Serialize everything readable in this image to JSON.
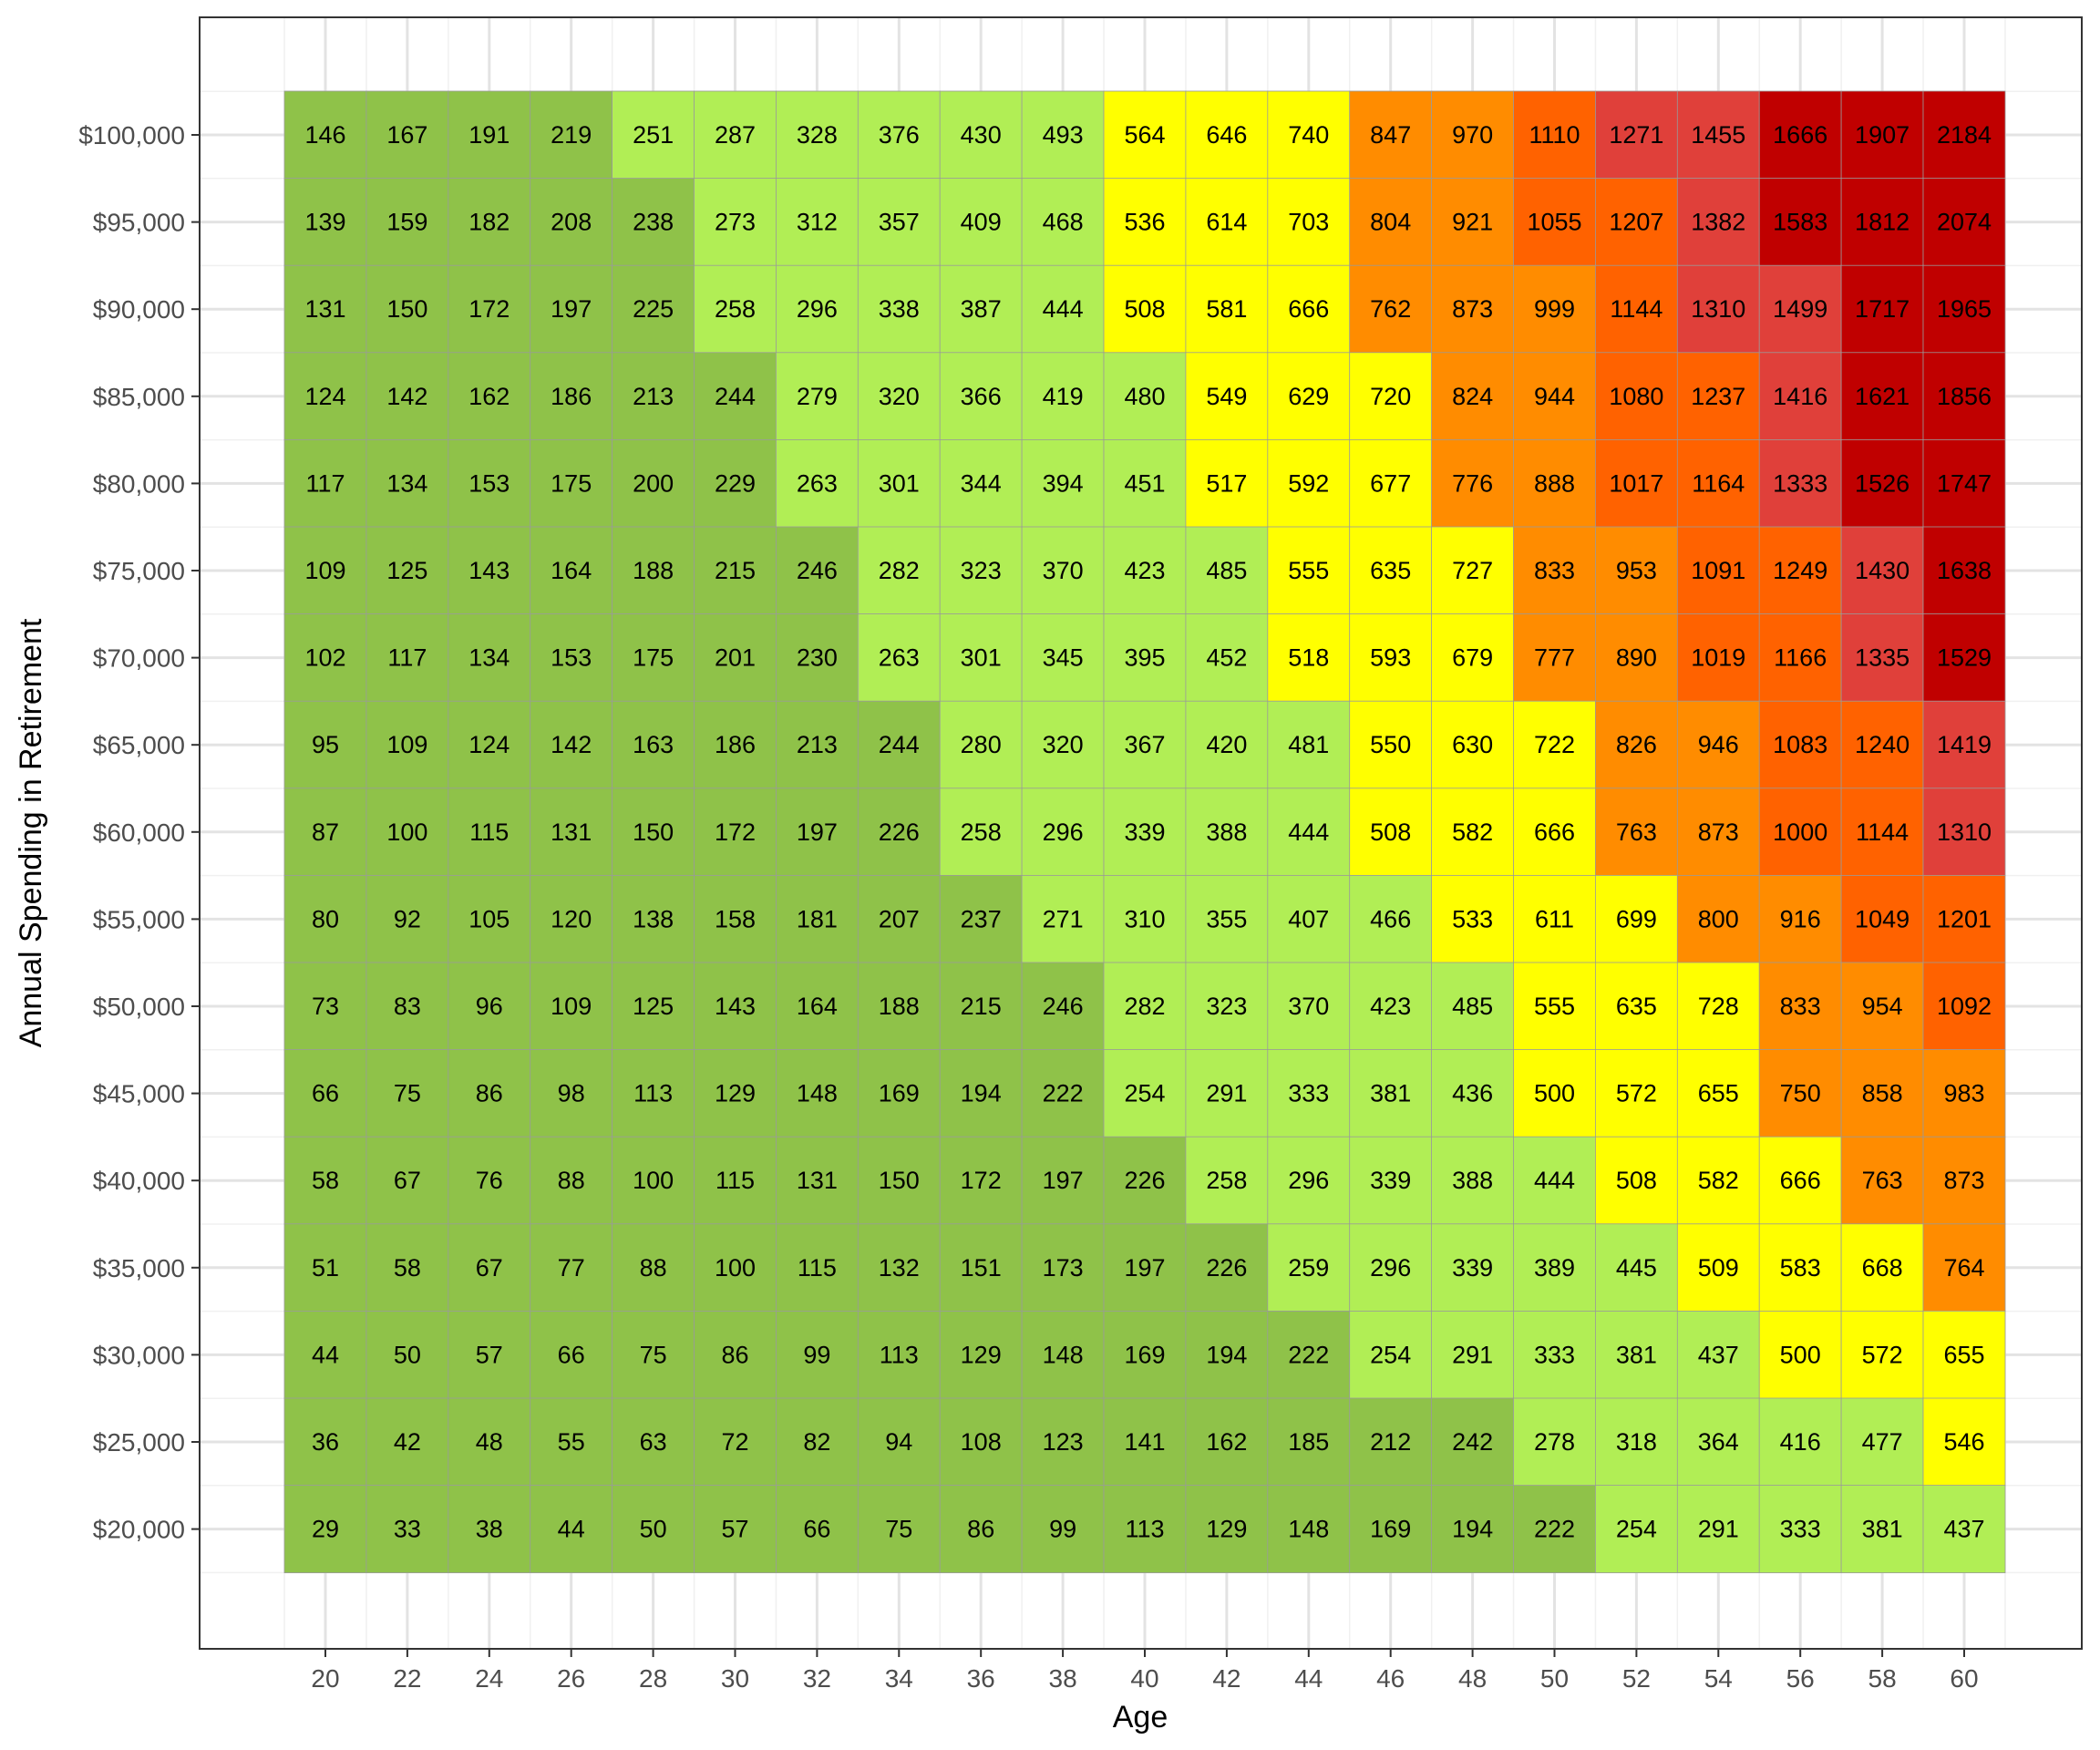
{
  "chart_data": {
    "type": "heatmap",
    "xlabel": "Age",
    "ylabel": "Annual Spending in Retirement",
    "x": [
      20,
      22,
      24,
      26,
      28,
      30,
      32,
      34,
      36,
      38,
      40,
      42,
      44,
      46,
      48,
      50,
      52,
      54,
      56,
      58,
      60
    ],
    "x_tick_labels": [
      "20",
      "22",
      "24",
      "26",
      "28",
      "30",
      "32",
      "34",
      "36",
      "38",
      "40",
      "42",
      "44",
      "46",
      "48",
      "50",
      "52",
      "54",
      "56",
      "58",
      "60"
    ],
    "y": [
      100000,
      95000,
      90000,
      85000,
      80000,
      75000,
      70000,
      65000,
      60000,
      55000,
      50000,
      45000,
      40000,
      35000,
      30000,
      25000,
      20000
    ],
    "y_tick_labels": [
      "$100,000",
      "$95,000",
      "$90,000",
      "$85,000",
      "$80,000",
      "$75,000",
      "$70,000",
      "$65,000",
      "$60,000",
      "$55,000",
      "$50,000",
      "$45,000",
      "$40,000",
      "$35,000",
      "$30,000",
      "$25,000",
      "$20,000"
    ],
    "values": [
      [
        146,
        167,
        191,
        219,
        251,
        287,
        328,
        376,
        430,
        493,
        564,
        646,
        740,
        847,
        970,
        1110,
        1271,
        1455,
        1666,
        1907,
        2184
      ],
      [
        139,
        159,
        182,
        208,
        238,
        273,
        312,
        357,
        409,
        468,
        536,
        614,
        703,
        804,
        921,
        1055,
        1207,
        1382,
        1583,
        1812,
        2074
      ],
      [
        131,
        150,
        172,
        197,
        225,
        258,
        296,
        338,
        387,
        444,
        508,
        581,
        666,
        762,
        873,
        999,
        1144,
        1310,
        1499,
        1717,
        1965
      ],
      [
        124,
        142,
        162,
        186,
        213,
        244,
        279,
        320,
        366,
        419,
        480,
        549,
        629,
        720,
        824,
        944,
        1080,
        1237,
        1416,
        1621,
        1856
      ],
      [
        117,
        134,
        153,
        175,
        200,
        229,
        263,
        301,
        344,
        394,
        451,
        517,
        592,
        677,
        776,
        888,
        1017,
        1164,
        1333,
        1526,
        1747
      ],
      [
        109,
        125,
        143,
        164,
        188,
        215,
        246,
        282,
        323,
        370,
        423,
        485,
        555,
        635,
        727,
        833,
        953,
        1091,
        1249,
        1430,
        1638
      ],
      [
        102,
        117,
        134,
        153,
        175,
        201,
        230,
        263,
        301,
        345,
        395,
        452,
        518,
        593,
        679,
        777,
        890,
        1019,
        1166,
        1335,
        1529
      ],
      [
        95,
        109,
        124,
        142,
        163,
        186,
        213,
        244,
        280,
        320,
        367,
        420,
        481,
        550,
        630,
        722,
        826,
        946,
        1083,
        1240,
        1419
      ],
      [
        87,
        100,
        115,
        131,
        150,
        172,
        197,
        226,
        258,
        296,
        339,
        388,
        444,
        508,
        582,
        666,
        763,
        873,
        1000,
        1144,
        1310
      ],
      [
        80,
        92,
        105,
        120,
        138,
        158,
        181,
        207,
        237,
        271,
        310,
        355,
        407,
        466,
        533,
        611,
        699,
        800,
        916,
        1049,
        1201
      ],
      [
        73,
        83,
        96,
        109,
        125,
        143,
        164,
        188,
        215,
        246,
        282,
        323,
        370,
        423,
        485,
        555,
        635,
        728,
        833,
        954,
        1092
      ],
      [
        66,
        75,
        86,
        98,
        113,
        129,
        148,
        169,
        194,
        222,
        254,
        291,
        333,
        381,
        436,
        500,
        572,
        655,
        750,
        858,
        983
      ],
      [
        58,
        67,
        76,
        88,
        100,
        115,
        131,
        150,
        172,
        197,
        226,
        258,
        296,
        339,
        388,
        444,
        508,
        582,
        666,
        763,
        873
      ],
      [
        51,
        58,
        67,
        77,
        88,
        100,
        115,
        132,
        151,
        173,
        197,
        226,
        259,
        296,
        339,
        389,
        445,
        509,
        583,
        668,
        764
      ],
      [
        44,
        50,
        57,
        66,
        75,
        86,
        99,
        113,
        129,
        148,
        169,
        194,
        222,
        254,
        291,
        333,
        381,
        437,
        500,
        572,
        655
      ],
      [
        36,
        42,
        48,
        55,
        63,
        72,
        82,
        94,
        108,
        123,
        141,
        162,
        185,
        212,
        242,
        278,
        318,
        364,
        416,
        477,
        546
      ],
      [
        29,
        33,
        38,
        44,
        50,
        57,
        66,
        75,
        86,
        99,
        113,
        129,
        148,
        169,
        194,
        222,
        254,
        291,
        333,
        381,
        437
      ]
    ],
    "color_levels": [
      [
        1,
        1,
        1,
        1,
        2,
        2,
        2,
        2,
        2,
        2,
        3,
        3,
        3,
        4,
        4,
        5,
        6,
        6,
        7,
        7,
        7
      ],
      [
        1,
        1,
        1,
        1,
        1,
        2,
        2,
        2,
        2,
        2,
        3,
        3,
        3,
        4,
        4,
        5,
        5,
        6,
        7,
        7,
        7
      ],
      [
        1,
        1,
        1,
        1,
        1,
        2,
        2,
        2,
        2,
        2,
        3,
        3,
        3,
        4,
        4,
        4,
        5,
        6,
        6,
        7,
        7
      ],
      [
        1,
        1,
        1,
        1,
        1,
        1,
        2,
        2,
        2,
        2,
        2,
        3,
        3,
        3,
        4,
        4,
        5,
        5,
        6,
        7,
        7
      ],
      [
        1,
        1,
        1,
        1,
        1,
        1,
        2,
        2,
        2,
        2,
        2,
        3,
        3,
        3,
        4,
        4,
        5,
        5,
        6,
        7,
        7
      ],
      [
        1,
        1,
        1,
        1,
        1,
        1,
        1,
        2,
        2,
        2,
        2,
        2,
        3,
        3,
        3,
        4,
        4,
        5,
        5,
        6,
        7
      ],
      [
        1,
        1,
        1,
        1,
        1,
        1,
        1,
        2,
        2,
        2,
        2,
        2,
        3,
        3,
        3,
        4,
        4,
        5,
        5,
        6,
        7
      ],
      [
        1,
        1,
        1,
        1,
        1,
        1,
        1,
        1,
        2,
        2,
        2,
        2,
        2,
        3,
        3,
        3,
        4,
        4,
        5,
        5,
        6
      ],
      [
        1,
        1,
        1,
        1,
        1,
        1,
        1,
        1,
        2,
        2,
        2,
        2,
        2,
        3,
        3,
        3,
        4,
        4,
        5,
        5,
        6
      ],
      [
        1,
        1,
        1,
        1,
        1,
        1,
        1,
        1,
        1,
        2,
        2,
        2,
        2,
        2,
        3,
        3,
        3,
        4,
        4,
        5,
        5
      ],
      [
        1,
        1,
        1,
        1,
        1,
        1,
        1,
        1,
        1,
        1,
        2,
        2,
        2,
        2,
        2,
        3,
        3,
        3,
        4,
        4,
        5
      ],
      [
        1,
        1,
        1,
        1,
        1,
        1,
        1,
        1,
        1,
        1,
        2,
        2,
        2,
        2,
        2,
        3,
        3,
        3,
        4,
        4,
        4
      ],
      [
        1,
        1,
        1,
        1,
        1,
        1,
        1,
        1,
        1,
        1,
        1,
        2,
        2,
        2,
        2,
        2,
        3,
        3,
        3,
        4,
        4
      ],
      [
        1,
        1,
        1,
        1,
        1,
        1,
        1,
        1,
        1,
        1,
        1,
        1,
        2,
        2,
        2,
        2,
        2,
        3,
        3,
        3,
        4
      ],
      [
        1,
        1,
        1,
        1,
        1,
        1,
        1,
        1,
        1,
        1,
        1,
        1,
        1,
        2,
        2,
        2,
        2,
        2,
        3,
        3,
        3
      ],
      [
        1,
        1,
        1,
        1,
        1,
        1,
        1,
        1,
        1,
        1,
        1,
        1,
        1,
        1,
        1,
        2,
        2,
        2,
        2,
        2,
        3
      ],
      [
        1,
        1,
        1,
        1,
        1,
        1,
        1,
        1,
        1,
        1,
        1,
        1,
        1,
        1,
        1,
        1,
        2,
        2,
        2,
        2,
        2
      ]
    ],
    "palette": {
      "1": "#8fc249",
      "2": "#b1ee55",
      "3": "#ffff00",
      "4": "#ff8c00",
      "5": "#ff6200",
      "6": "#e0403a",
      "7": "#c00000"
    },
    "grid": true,
    "legend": "none"
  }
}
